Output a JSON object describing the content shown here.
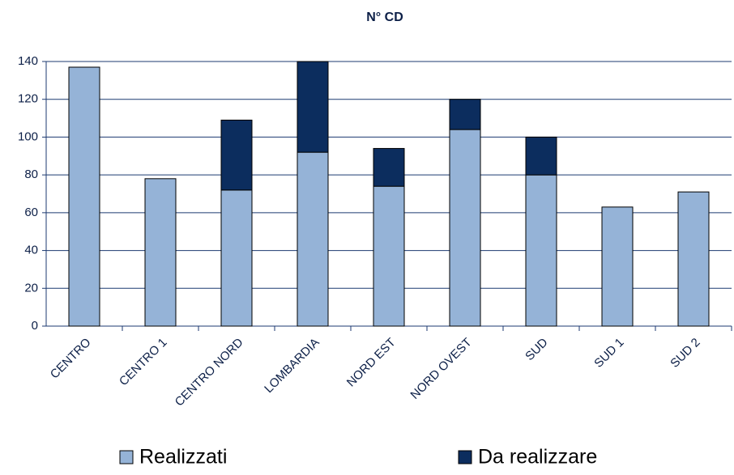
{
  "chart_data": {
    "type": "stacked_bar",
    "title": "N° CD",
    "categories": [
      "CENTRO",
      "CENTRO 1",
      "CENTRO NORD",
      "LOMBARDIA",
      "NORD EST",
      "NORD OVEST",
      "SUD",
      "SUD 1",
      "SUD 2"
    ],
    "series": [
      {
        "name": "Realizzati",
        "color": "#95b3d7",
        "values": [
          137,
          78,
          72,
          92,
          74,
          104,
          80,
          63,
          71
        ]
      },
      {
        "name": "Da realizzare",
        "color": "#0c2d5e",
        "values": [
          0,
          0,
          37,
          48,
          20,
          16,
          20,
          0,
          0
        ]
      }
    ],
    "ylim": [
      0,
      140
    ],
    "yticks": [
      0,
      20,
      40,
      60,
      80,
      100,
      120,
      140
    ],
    "grid": true,
    "legend": "bottom"
  }
}
